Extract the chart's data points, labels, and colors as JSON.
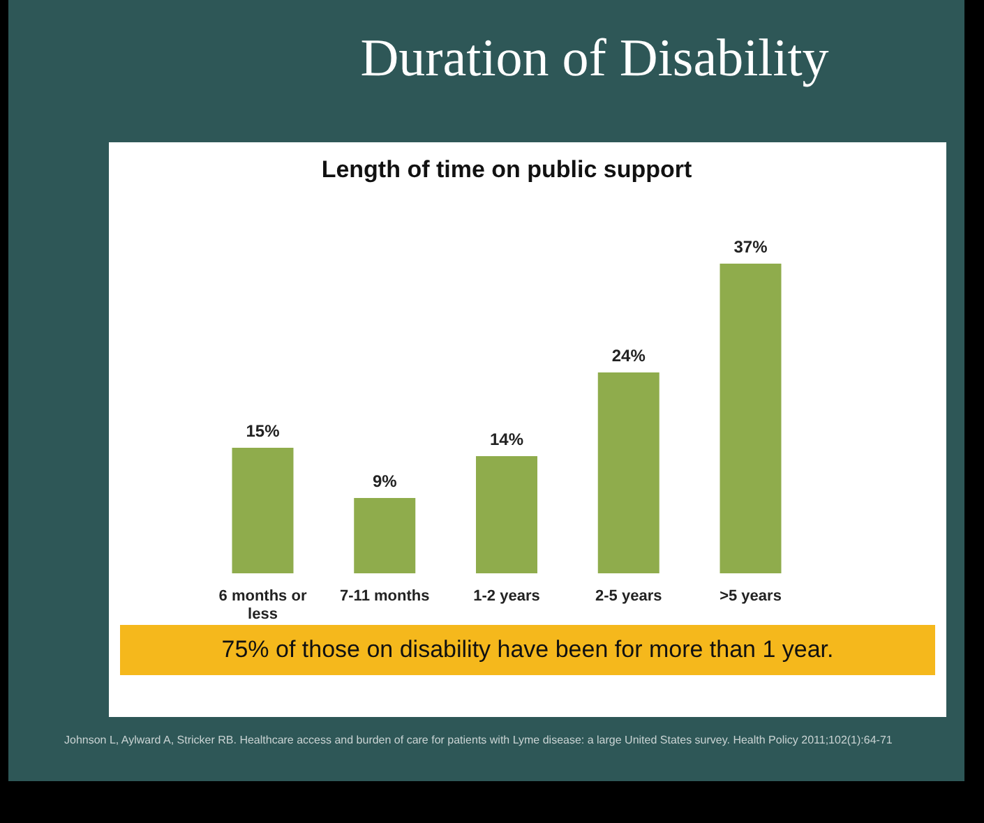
{
  "chart_data": {
    "type": "bar",
    "title": "Duration of Disability",
    "subtitle": "Length of time on public support",
    "categories": [
      "6 months or less",
      "7-11 months",
      "1-2 years",
      "2-5 years",
      ">5 years"
    ],
    "values": [
      15,
      9,
      14,
      24,
      37
    ],
    "color": "#8fac4c",
    "data_labels": true,
    "value_labels": [
      "15%",
      "9%",
      "14%",
      "24%",
      "37%"
    ],
    "annotations": [
      "75% of those on disability have been for more than 1 year.",
      "Johnson L, Aylward A, Stricker RB. Healthcare access and burden of care for patients with Lyme disease: a large United States survey. Health Policy 2011;102(1):64-71"
    ]
  }
}
